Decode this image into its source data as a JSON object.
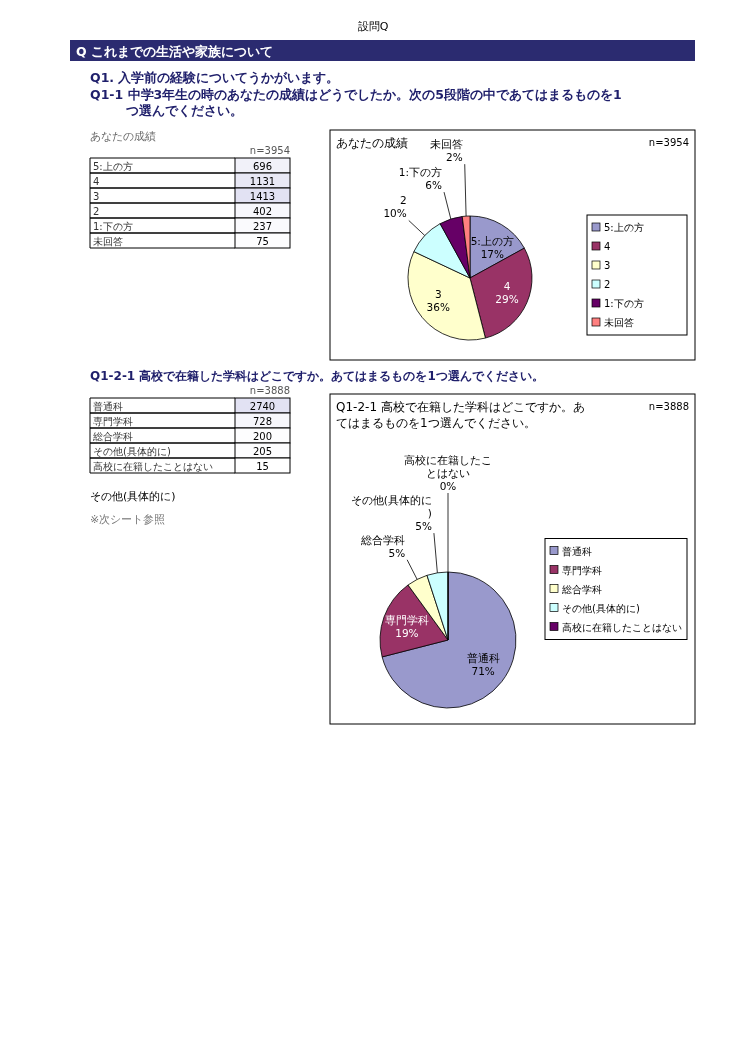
{
  "chart_data": [
    {
      "type": "heatmap",
      "title": "あなたの成績",
      "categories": [
        null
      ],
      "y_categories": [
        "5:上の方",
        "4",
        "3",
        "2",
        "1:下の方",
        "未回答"
      ],
      "cells": [
        [
          696
        ],
        [
          1131
        ],
        [
          1413
        ],
        [
          402
        ],
        [
          237
        ],
        [
          75
        ]
      ],
      "cell_labels": [
        [
          "696"
        ],
        [
          "1131"
        ],
        [
          "1413"
        ],
        [
          "402"
        ],
        [
          "237"
        ],
        [
          "75"
        ]
      ],
      "annotations": [
        "設問Q",
        "Q これまでの生活や家族について",
        "Q1. 入学前の経験についてうかがいます。",
        "Q1-1 中学3年生の時のあなたの成績はどうでしたか。次の5段階の中であてはまるものを1つ選んでください。",
        "n=3954"
      ]
    },
    {
      "type": "pie",
      "title": "あなたの成績",
      "categories": [
        "5:上の方",
        "4",
        "3",
        "2",
        "1:下の方",
        "未回答"
      ],
      "values": [
        17,
        29,
        36,
        10,
        6,
        2
      ],
      "colors": [
        "#9999cc",
        "#993366",
        "#ffffcc",
        "#ccffff",
        "#660066",
        "#ff8080"
      ],
      "value_labels": [
        "17%",
        "29%",
        "36%",
        "10%",
        "6%",
        "2%"
      ],
      "legend": "right",
      "annotations": [
        "n=3954"
      ]
    },
    {
      "type": "heatmap",
      "title": "Q1-2-1 高校で在籍した学科はどこですか。あてはまるものを1つ選んでください。",
      "categories": [
        null
      ],
      "y_categories": [
        "普通科",
        "専門学科",
        "総合学科",
        "その他(具体的に)",
        "高校に在籍したことはない"
      ],
      "cells": [
        [
          2740
        ],
        [
          728
        ],
        [
          200
        ],
        [
          205
        ],
        [
          15
        ]
      ],
      "cell_labels": [
        [
          "2740"
        ],
        [
          "728"
        ],
        [
          "200"
        ],
        [
          "205"
        ],
        [
          "15"
        ]
      ],
      "annotations": [
        "その他(具体的に)",
        "※次シート参照",
        "n=3888"
      ]
    },
    {
      "type": "pie",
      "title": "Q1-2-1 高校で在籍した学科はどこですか。あてはまるものを1つ選んでください。",
      "categories": [
        "普通科",
        "専門学科",
        "総合学科",
        "その他(具体的に)",
        "高校に在籍したことはない"
      ],
      "values": [
        71,
        19,
        5,
        5,
        0
      ],
      "colors": [
        "#9999cc",
        "#993366",
        "#ffffcc",
        "#ccffff",
        "#660066"
      ],
      "value_labels": [
        "71%",
        "19%",
        "5%",
        "5%",
        "0%"
      ],
      "legend": "right",
      "annotations": [
        "n=3888"
      ]
    }
  ]
}
